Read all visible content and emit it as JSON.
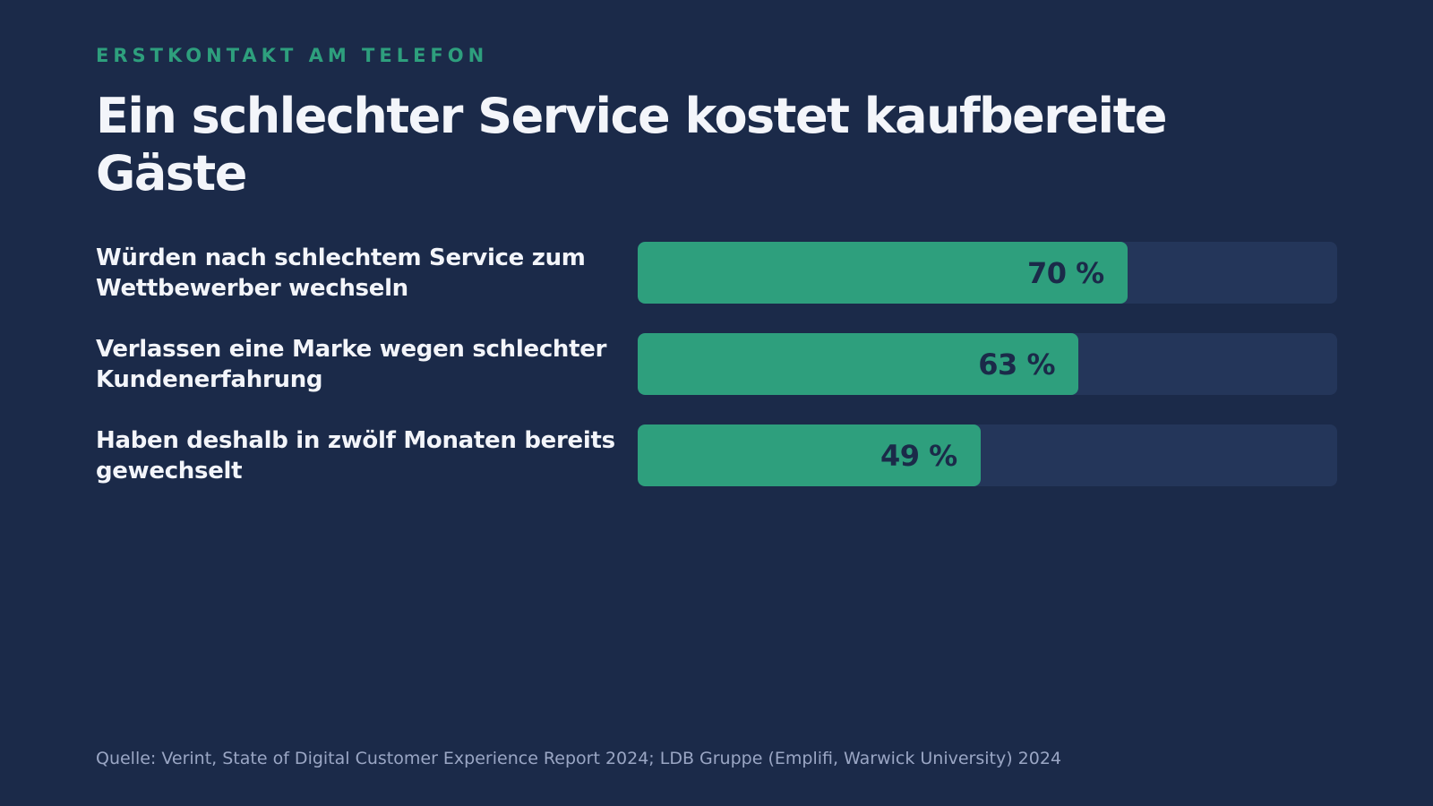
{
  "header": {
    "eyebrow": "ERSTKONTAKT AM TELEFON",
    "title": "Ein schlechter Service kostet kaufbereite Gäste"
  },
  "chart_data": {
    "type": "bar",
    "orientation": "horizontal",
    "categories": [
      "Würden nach schlechtem Service zum Wettbewerber wechseln",
      "Verlassen eine Marke wegen schlechter Kundenerfahrung",
      "Haben deshalb in zwölf Monaten bereits gewechselt"
    ],
    "values": [
      70,
      63,
      49
    ],
    "value_labels": [
      "70 %",
      "63 %",
      "49 %"
    ],
    "unit": "%",
    "xlim": [
      0,
      100
    ],
    "title": "Ein schlechter Service kostet kaufbereite Gäste",
    "xlabel": "",
    "ylabel": "",
    "grid": false,
    "legend": "none"
  },
  "footer": {
    "source": "Quelle: Verint, State of Digital Customer Experience Report 2024; LDB Gruppe (Emplifi, Warwick University) 2024"
  },
  "colors": {
    "background": "#1b2a49",
    "bar_fill": "#2e9f7d",
    "bar_track": "#24365a",
    "eyebrow": "#2e9f7d",
    "title": "#f3f5fa",
    "value_text": "#1b2a49",
    "source_text": "#9aa6c4"
  }
}
